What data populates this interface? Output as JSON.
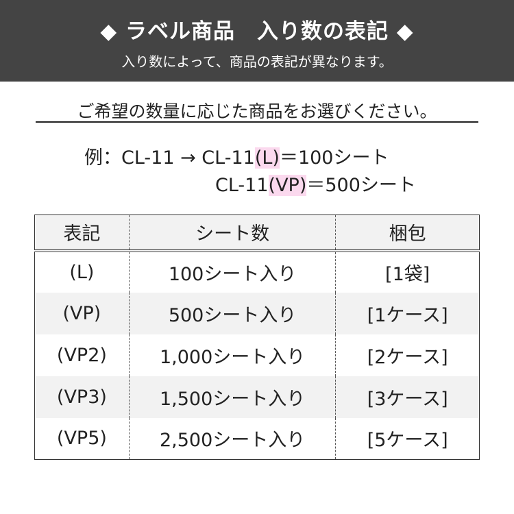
{
  "banner": {
    "title": "◆ ラベル商品　入り数の表記 ◆",
    "subtitle": "入り数によって、商品の表記が異なります。"
  },
  "lead": "ご希望の数量に応じた商品をお選びください。",
  "example": {
    "prefix": "例：CL-11 → CL-11",
    "l_tag": "(L)",
    "l_rest": "＝100シート",
    "vp_base": "CL-11",
    "vp_tag": "(VP)",
    "vp_rest": "＝500シート",
    "highlight_color": "#fbd9ee"
  },
  "table": {
    "headers": [
      "表記",
      "シート数",
      "梱包"
    ],
    "rows": [
      [
        "(L)",
        "100シート入り",
        "[1袋]"
      ],
      [
        "(VP)",
        "500シート入り",
        "[1ケース]"
      ],
      [
        "(VP2)",
        "1,000シート入り",
        "[2ケース]"
      ],
      [
        "(VP3)",
        "1,500シート入り",
        "[3ケース]"
      ],
      [
        "(VP5)",
        "2,500シート入り",
        "[5ケース]"
      ]
    ]
  }
}
